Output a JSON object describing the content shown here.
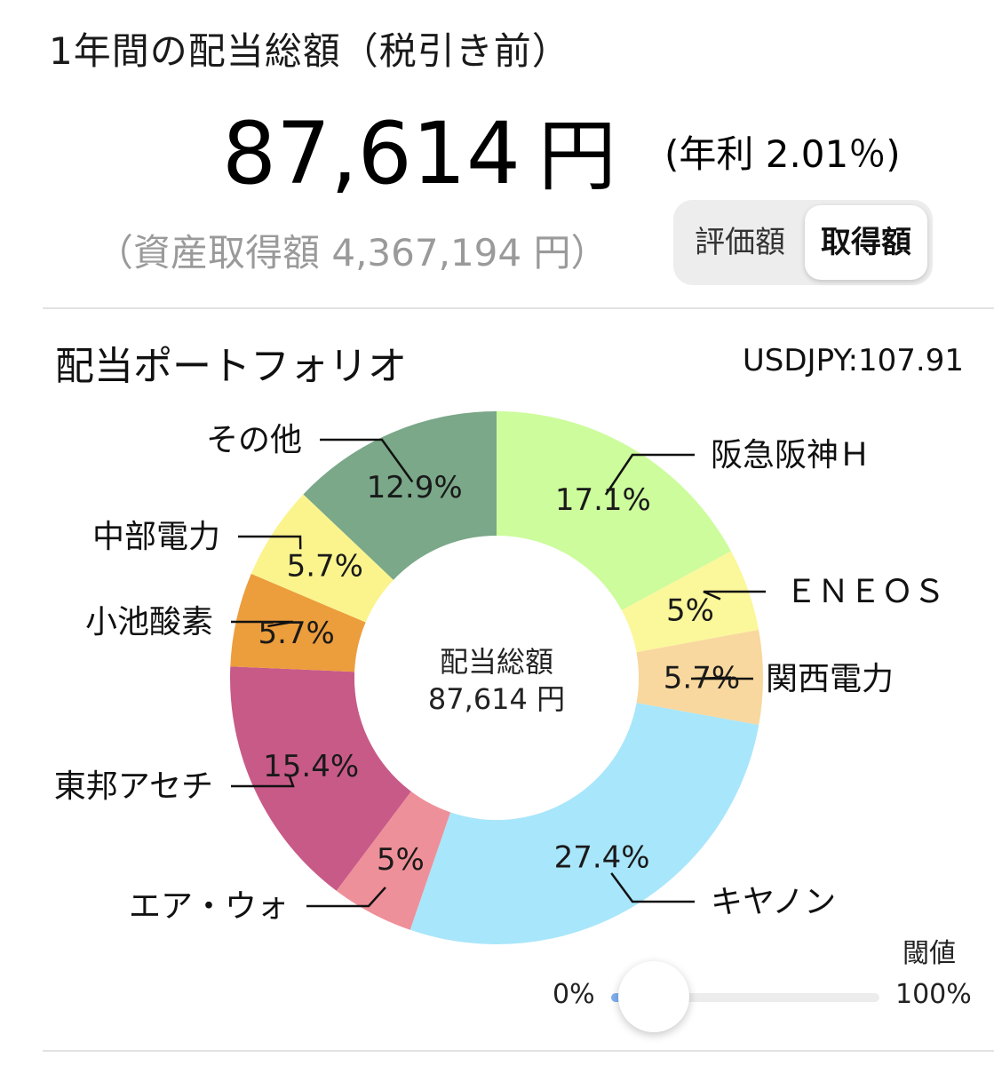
{
  "header": {
    "title": "1年間の配当総額（税引き前）",
    "total_amount": "87,614",
    "currency_unit": "円",
    "yield_text": "(年利 2.01％)",
    "acquisition_text": "（資産取得額 4,367,194 円）"
  },
  "toggle": {
    "options": [
      "評価額",
      "取得額"
    ],
    "selected": "取得額"
  },
  "portfolio": {
    "title": "配当ポートフォリオ",
    "fx_rate": "USDJPY:107.91",
    "center_label": "配当総額",
    "center_value": "87,614 円"
  },
  "threshold": {
    "label": "閾値",
    "min_label": "0%",
    "max_label": "100%",
    "value_percent": 0
  },
  "chart_data": {
    "type": "pie",
    "donut": true,
    "categories": [
      "阪急阪神Ｈ",
      "ＥＮＥＯＳ",
      "関西電力",
      "キヤノン",
      "エア・ウォ",
      "東邦アセチ",
      "小池酸素",
      "中部電力",
      "その他"
    ],
    "values": [
      17.1,
      5,
      5.7,
      27.4,
      5,
      15.4,
      5.7,
      5.7,
      12.9
    ],
    "value_labels": [
      "17.1%",
      "5%",
      "5.7%",
      "27.4%",
      "5%",
      "15.4%",
      "5.7%",
      "5.7%",
      "12.9%"
    ],
    "colors": [
      "#ccfc9c",
      "#fbf79b",
      "#f8d89e",
      "#a8e6fb",
      "#ee9099",
      "#c85a88",
      "#ec9d3c",
      "#fbf48d",
      "#7aa889"
    ]
  }
}
